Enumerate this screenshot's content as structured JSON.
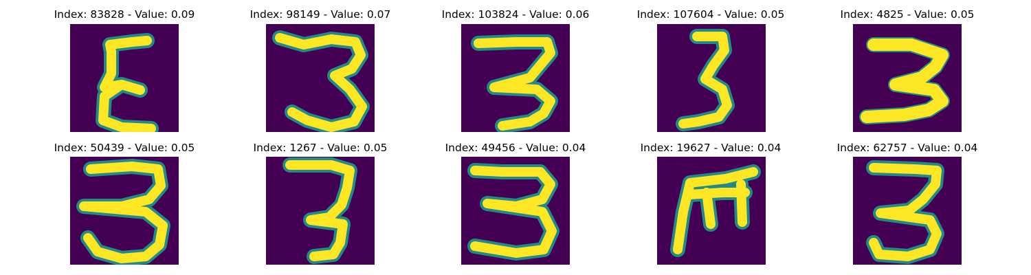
{
  "grid": {
    "panels": [
      {
        "title": "Index: 83828 - Value: 0.09",
        "glyph": "epsilon"
      },
      {
        "title": "Index: 98149 - Value: 0.07",
        "glyph": "three-open"
      },
      {
        "title": "Index: 103824 - Value: 0.06",
        "glyph": "three-bold"
      },
      {
        "title": "Index: 107604 - Value: 0.05",
        "glyph": "three-narrow"
      },
      {
        "title": "Index: 4825 - Value: 0.05",
        "glyph": "three-thick"
      },
      {
        "title": "Index: 50439 - Value: 0.05",
        "glyph": "three-tailed"
      },
      {
        "title": "Index: 1267 - Value: 0.05",
        "glyph": "three-thin"
      },
      {
        "title": "Index: 49456 - Value: 0.04",
        "glyph": "three-wide"
      },
      {
        "title": "Index: 19627 - Value: 0.04",
        "glyph": "m-rotated"
      },
      {
        "title": "Index: 62757 - Value: 0.04",
        "glyph": "three-curl"
      }
    ]
  },
  "colors": {
    "background": "#440154",
    "edge": "#21918c",
    "stroke": "#fde725"
  }
}
